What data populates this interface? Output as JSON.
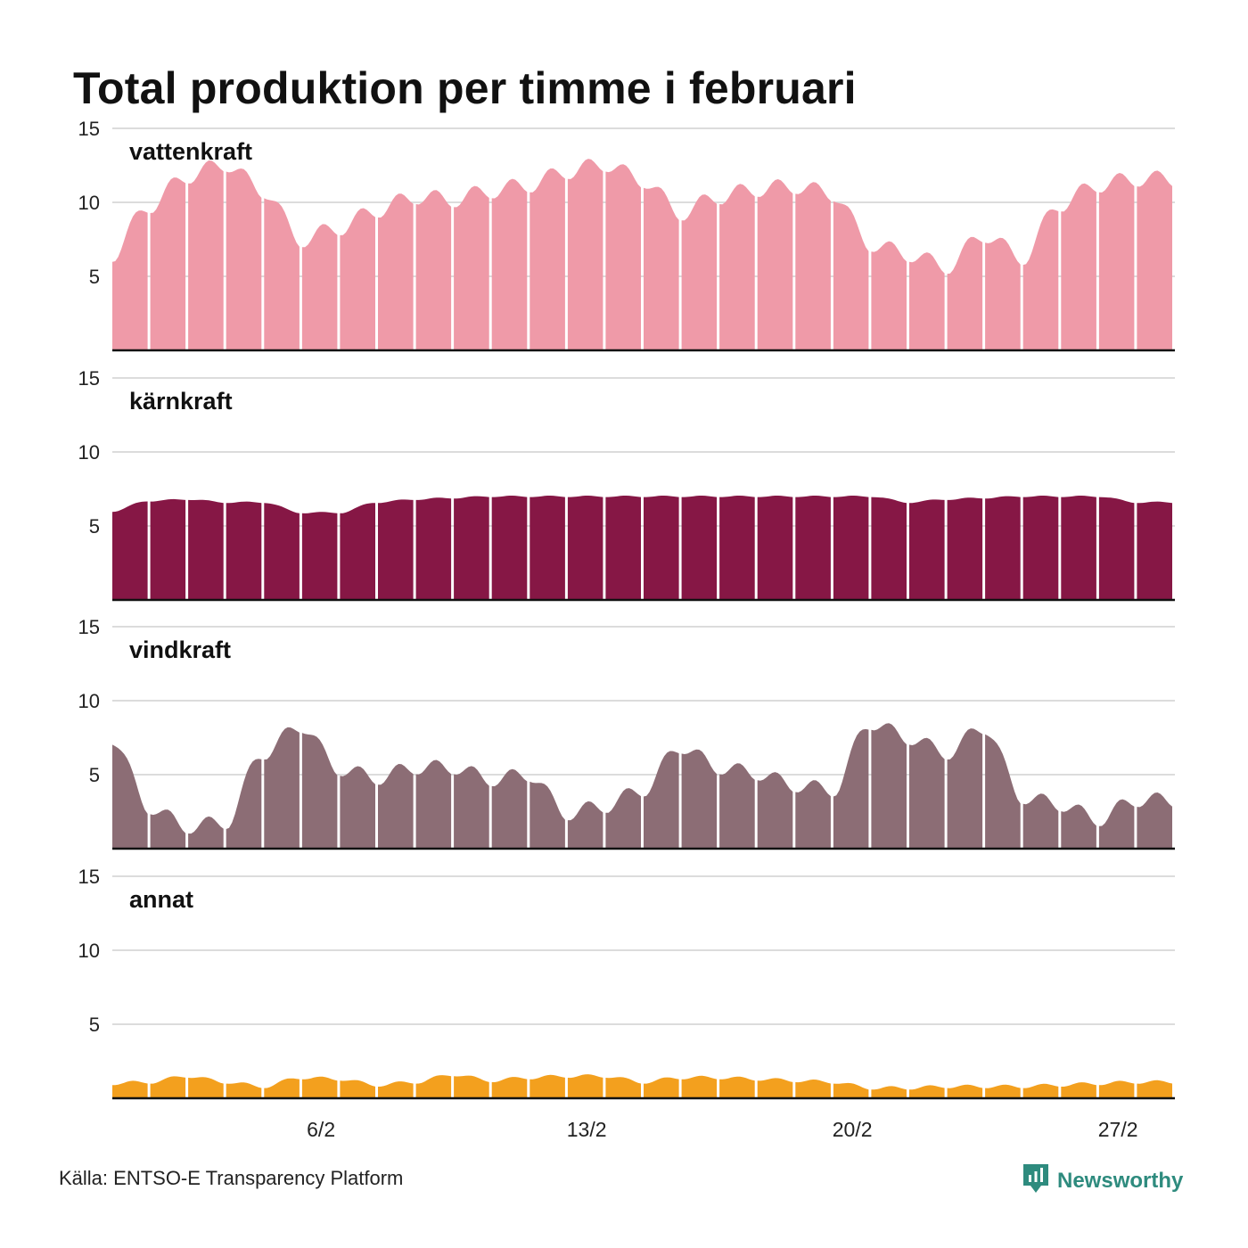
{
  "title": "Total produktion per timme i februari",
  "source": "Källa: ENTSO-E Transparency Platform",
  "brand": {
    "name": "Newsworthy",
    "icon": "newsworthy-logo-icon",
    "color": "#2e8b7e"
  },
  "chart_data": {
    "type": "area",
    "resolution": "hourly",
    "x_range": [
      "1/2",
      "28/2"
    ],
    "x_ticks": [
      "6/2",
      "13/2",
      "20/2",
      "27/2"
    ],
    "x_tick_days": [
      6,
      13,
      20,
      27
    ],
    "ylim": [
      0,
      15
    ],
    "y_ticks": [
      "5",
      "10",
      "15"
    ],
    "grid": true,
    "day_separators": true,
    "series": [
      {
        "name": "vattenkraft",
        "color": "#ef9aa8",
        "daily_values": [
          6.5,
          9.8,
          11.8,
          12.6,
          10.8,
          7.5,
          8.3,
          9.5,
          10.4,
          10.2,
          10.8,
          11.2,
          12.1,
          12.6,
          11.5,
          9.3,
          10.4,
          10.9,
          11.1,
          10.6,
          7.2,
          6.5,
          5.7,
          7.8,
          6.3,
          9.9,
          11.2,
          11.6
        ]
      },
      {
        "name": "kärnkraft",
        "color": "#861745",
        "daily_values": [
          6.0,
          6.7,
          6.8,
          6.6,
          6.6,
          5.9,
          5.9,
          6.6,
          6.8,
          6.9,
          7.0,
          7.0,
          7.0,
          7.0,
          7.0,
          7.0,
          7.0,
          7.0,
          7.0,
          7.0,
          7.0,
          6.6,
          6.8,
          6.9,
          7.0,
          7.0,
          7.0,
          6.6
        ]
      },
      {
        "name": "vindkraft",
        "color": "#8c6d75",
        "daily_values": [
          7.5,
          2.8,
          1.5,
          1.8,
          6.5,
          8.3,
          5.4,
          4.8,
          5.5,
          5.5,
          4.7,
          5.0,
          2.4,
          2.9,
          4.0,
          6.9,
          5.5,
          5.1,
          4.3,
          4.0,
          8.5,
          7.5,
          6.5,
          8.2,
          3.5,
          3.0,
          2.0,
          3.3
        ]
      },
      {
        "name": "annat",
        "color": "#f3a01e",
        "daily_values": [
          1.0,
          1.1,
          1.5,
          1.1,
          0.8,
          1.4,
          1.3,
          0.9,
          1.1,
          1.6,
          1.2,
          1.4,
          1.5,
          1.5,
          1.1,
          1.4,
          1.4,
          1.3,
          1.2,
          1.1,
          0.7,
          0.7,
          0.8,
          0.8,
          0.8,
          0.9,
          1.0,
          1.1
        ]
      }
    ]
  }
}
